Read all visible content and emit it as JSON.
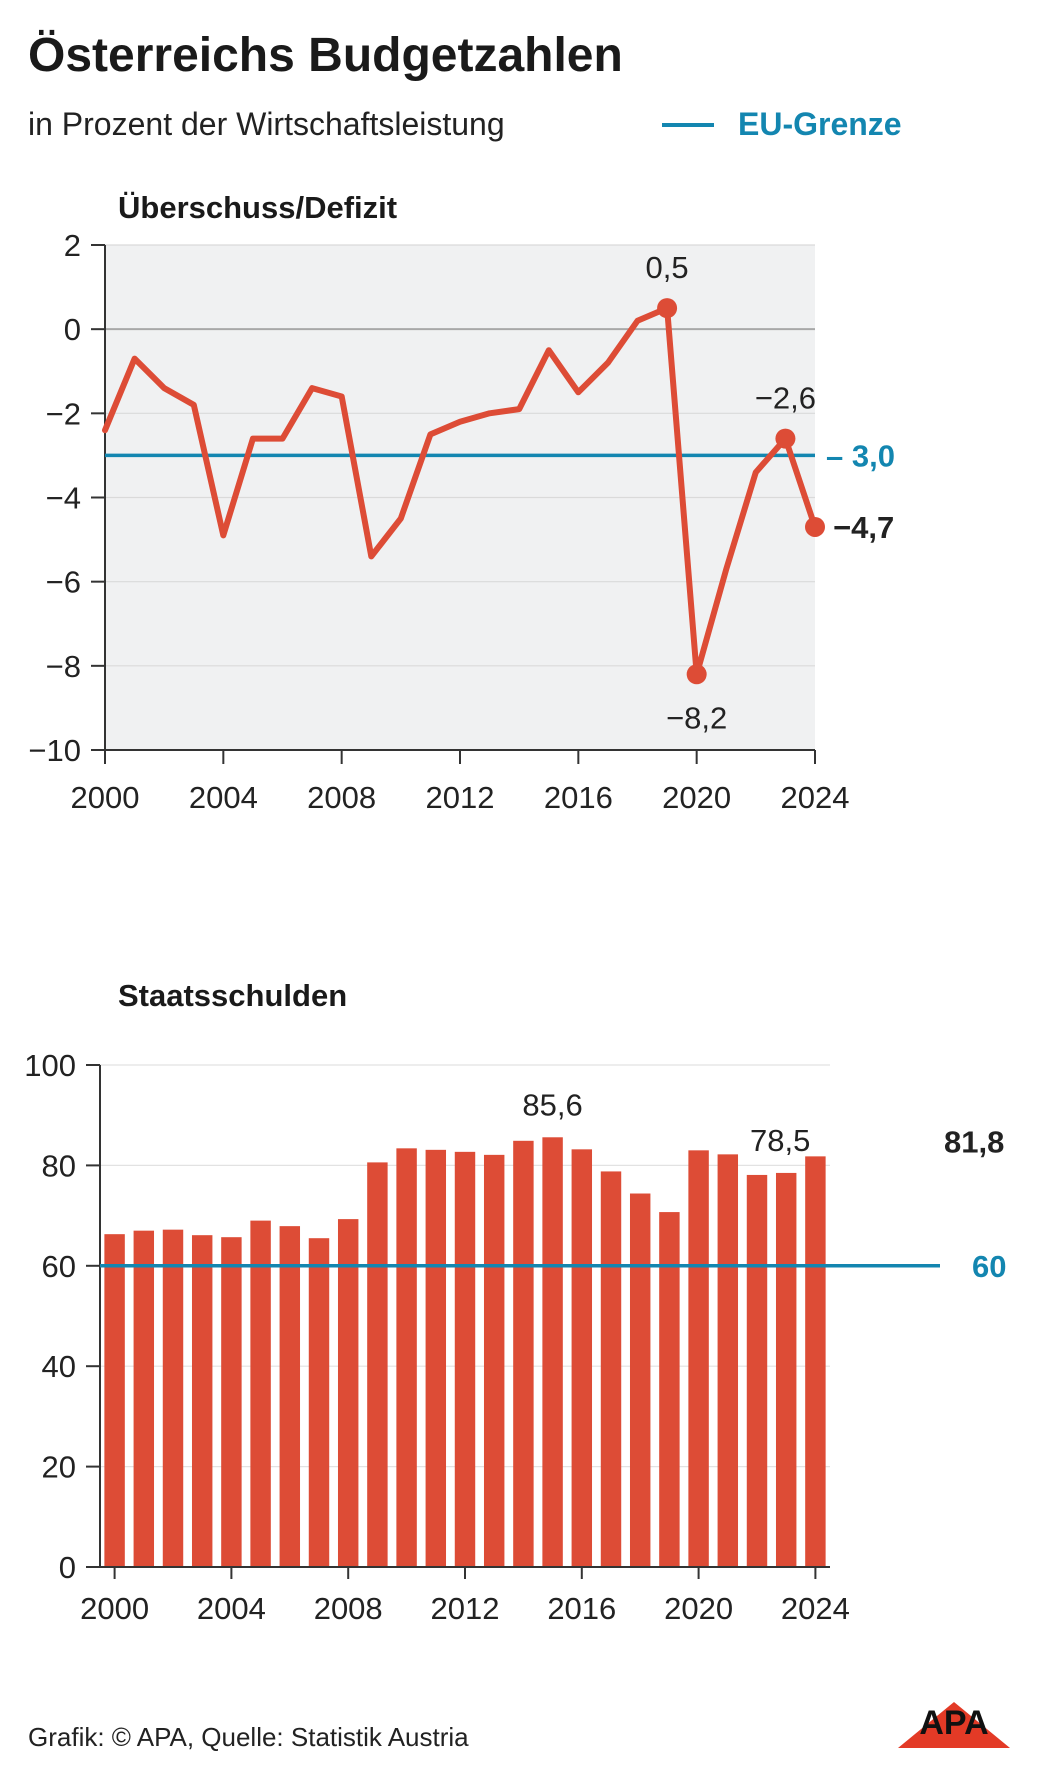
{
  "header": {
    "title": "Österreichs Budgetzahlen",
    "subtitle": "in Prozent der Wirtschaftsleistung",
    "legend_label": "EU-Grenze"
  },
  "colors": {
    "line": "#dd4c36",
    "bar": "#dd4c36",
    "reference": "#1386b0",
    "plot_bg": "#f0f1f2"
  },
  "chart_data": [
    {
      "type": "line",
      "title": "Überschuss/Defizit",
      "x": [
        2000,
        2001,
        2002,
        2003,
        2004,
        2005,
        2006,
        2007,
        2008,
        2009,
        2010,
        2011,
        2012,
        2013,
        2014,
        2015,
        2016,
        2017,
        2018,
        2019,
        2020,
        2021,
        2022,
        2023,
        2024
      ],
      "series": [
        {
          "values": [
            -2.4,
            -0.7,
            -1.4,
            -1.8,
            -4.9,
            -2.6,
            -2.6,
            -1.4,
            -1.6,
            -5.4,
            -4.5,
            -2.5,
            -2.2,
            -2.0,
            -1.9,
            -0.5,
            -1.5,
            -0.8,
            0.2,
            0.5,
            -8.2,
            -5.7,
            -3.4,
            -2.6,
            -4.7
          ]
        }
      ],
      "ylim": [
        -10,
        2
      ],
      "yticks": [
        2,
        0,
        -2,
        -4,
        -6,
        -8,
        -10
      ],
      "ytick_labels": [
        "2",
        "0",
        "−2",
        "−4",
        "−6",
        "−8",
        "−10"
      ],
      "xticks": [
        2000,
        2004,
        2008,
        2012,
        2016,
        2020,
        2024
      ],
      "xtick_labels": [
        "2000",
        "2004",
        "2008",
        "2012",
        "2016",
        "2020",
        "2024"
      ],
      "reference_line": {
        "value": -3.0,
        "label": "– 3,0"
      },
      "annotations": [
        {
          "x": 2019,
          "y": 0.5,
          "label": "0,5",
          "position": "above",
          "bold": false
        },
        {
          "x": 2020,
          "y": -8.2,
          "label": "−8,2",
          "position": "below",
          "bold": false
        },
        {
          "x": 2023,
          "y": -2.6,
          "label": "−2,6",
          "position": "above",
          "bold": false
        },
        {
          "x": 2024,
          "y": -4.7,
          "label": "−4,7",
          "position": "right",
          "bold": true
        }
      ],
      "grid": true
    },
    {
      "type": "bar",
      "title": "Staatsschulden",
      "categories": [
        2000,
        2001,
        2002,
        2003,
        2004,
        2005,
        2006,
        2007,
        2008,
        2009,
        2010,
        2011,
        2012,
        2013,
        2014,
        2015,
        2016,
        2017,
        2018,
        2019,
        2020,
        2021,
        2022,
        2023,
        2024
      ],
      "values": [
        66.3,
        67.0,
        67.2,
        66.1,
        65.7,
        69.0,
        67.9,
        65.5,
        69.3,
        80.6,
        83.4,
        83.1,
        82.7,
        82.1,
        84.9,
        85.6,
        83.2,
        78.8,
        74.4,
        70.7,
        83.0,
        82.2,
        78.1,
        78.5,
        81.8
      ],
      "ylim": [
        0,
        100
      ],
      "yticks": [
        0,
        20,
        40,
        60,
        80,
        100
      ],
      "ytick_labels": [
        "0",
        "20",
        "40",
        "60",
        "80",
        "100"
      ],
      "xticks": [
        2000,
        2004,
        2008,
        2012,
        2016,
        2020,
        2024
      ],
      "xtick_labels": [
        "2000",
        "2004",
        "2008",
        "2012",
        "2016",
        "2020",
        "2024"
      ],
      "reference_line": {
        "value": 60,
        "label": "60"
      },
      "annotations": [
        {
          "x": 2015,
          "y": 85.6,
          "label": "85,6",
          "bold": false
        },
        {
          "x": 2023,
          "y": 78.5,
          "label": "78,5",
          "bold": false
        },
        {
          "x": 2024,
          "y": 81.8,
          "label": "81,8",
          "bold": true
        }
      ],
      "grid": true
    }
  ],
  "footer": {
    "credit": "Grafik: © APA, Quelle: Statistik Austria",
    "logo_text": "APA"
  }
}
